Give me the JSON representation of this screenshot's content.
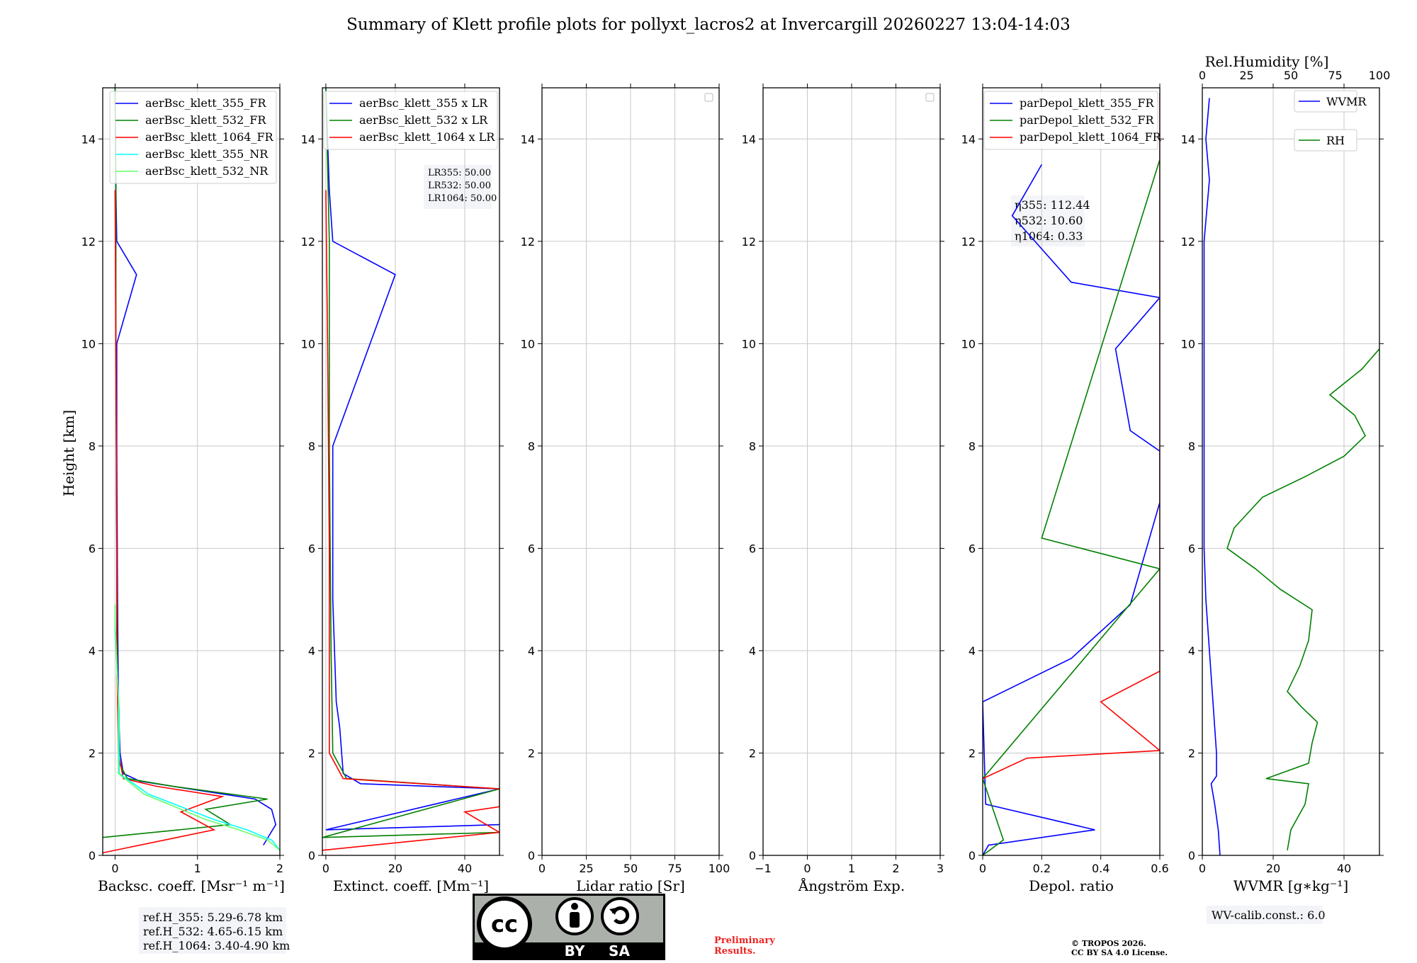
{
  "title": "Summary of Klett profile plots for pollyxt_lacros2 at Invercargill 20260227 13:04-14:03",
  "ylabel": "Height [km]",
  "chart_data": [
    {
      "id": "backscatter",
      "type": "line",
      "xlabel": "Backsc. coeff. [Msr$^{-1}$ m$^{-1}$]",
      "xlabel_display": "Backsc. coeff. [Msr⁻¹ m⁻¹]",
      "xlim": [
        -0.15,
        2.0
      ],
      "ylim": [
        0,
        15
      ],
      "xticks": [
        0,
        1,
        2
      ],
      "yticks": [
        0,
        2,
        4,
        6,
        8,
        10,
        12,
        14
      ],
      "legend": {
        "location": "top-right"
      },
      "series": [
        {
          "name": "aerBsc_klett_355_FR",
          "color": "#0000ff",
          "points": [
            [
              1.8,
              0.2
            ],
            [
              1.95,
              0.6
            ],
            [
              1.9,
              0.9
            ],
            [
              1.7,
              1.1
            ],
            [
              0.9,
              1.3
            ],
            [
              0.3,
              1.45
            ],
            [
              0.1,
              1.6
            ],
            [
              0.06,
              2.0
            ],
            [
              0.04,
              3.0
            ],
            [
              0.03,
              5.0
            ],
            [
              0.02,
              8.0
            ],
            [
              0.02,
              10.0
            ],
            [
              0.26,
              11.35
            ],
            [
              0.02,
              12.0
            ],
            [
              0.01,
              13.0
            ],
            [
              0.0,
              15.0
            ]
          ]
        },
        {
          "name": "aerBsc_klett_532_FR",
          "color": "#008000",
          "points": [
            [
              -0.15,
              0.35
            ],
            [
              1.4,
              0.6
            ],
            [
              1.1,
              0.9
            ],
            [
              1.85,
              1.1
            ],
            [
              0.7,
              1.35
            ],
            [
              0.15,
              1.5
            ],
            [
              0.05,
              1.8
            ],
            [
              0.03,
              3.0
            ],
            [
              0.02,
              6.0
            ],
            [
              0.01,
              10.0
            ],
            [
              0.01,
              13.0
            ],
            [
              0.0,
              15.0
            ]
          ]
        },
        {
          "name": "aerBsc_klett_1064_FR",
          "color": "#ff0000",
          "points": [
            [
              -0.15,
              0.05
            ],
            [
              1.2,
              0.5
            ],
            [
              0.8,
              0.85
            ],
            [
              1.3,
              1.15
            ],
            [
              0.5,
              1.35
            ],
            [
              0.1,
              1.5
            ],
            [
              0.04,
              2.0
            ],
            [
              0.02,
              4.0
            ],
            [
              0.02,
              6.0
            ],
            [
              0.01,
              10.0
            ],
            [
              0.0,
              13.0
            ]
          ]
        },
        {
          "name": "aerBsc_klett_355_NR",
          "color": "#00ffff",
          "points": [
            [
              2.0,
              0.1
            ],
            [
              1.9,
              0.3
            ],
            [
              1.6,
              0.5
            ],
            [
              1.2,
              0.7
            ],
            [
              0.4,
              1.2
            ],
            [
              0.05,
              1.6
            ],
            [
              0.05,
              2.8
            ],
            [
              0.0,
              4.4
            ],
            [
              0.0,
              4.9
            ]
          ]
        },
        {
          "name": "aerBsc_klett_532_NR",
          "color": "#66ff66",
          "points": [
            [
              2.0,
              0.1
            ],
            [
              1.85,
              0.3
            ],
            [
              1.5,
              0.5
            ],
            [
              1.1,
              0.7
            ],
            [
              0.35,
              1.2
            ],
            [
              0.04,
              1.6
            ],
            [
              0.04,
              3.0
            ],
            [
              0.0,
              4.6
            ],
            [
              0.0,
              4.9
            ]
          ]
        }
      ],
      "annotation": [
        "ref.H_355: 5.29-6.78 km",
        "ref.H_532: 4.65-6.15 km",
        "ref.H_1064: 3.40-4.90 km"
      ]
    },
    {
      "id": "extinction",
      "type": "line",
      "xlabel": "Extinct. coeff. [Mm$^{-1}$]",
      "xlabel_display": "Extinct. coeff. [Mm⁻¹]",
      "xlim": [
        -1,
        50
      ],
      "ylim": [
        0,
        15
      ],
      "xticks": [
        0,
        20,
        40
      ],
      "yticks": [
        0,
        2,
        4,
        6,
        8,
        10,
        12,
        14
      ],
      "legend": {
        "location": "top-right"
      },
      "series": [
        {
          "name": "aerBsc_klett_355 x LR",
          "color": "#0000ff",
          "points": [
            [
              50,
              0.6
            ],
            [
              0,
              0.5
            ],
            [
              50,
              1.3
            ],
            [
              10,
              1.4
            ],
            [
              5,
              1.6
            ],
            [
              4,
              2.5
            ],
            [
              3,
              3.0
            ],
            [
              2,
              5.0
            ],
            [
              2,
              8.0
            ],
            [
              20,
              11.35
            ],
            [
              2,
              12.0
            ],
            [
              1,
              13.0
            ],
            [
              0,
              15.0
            ]
          ]
        },
        {
          "name": "aerBsc_klett_532 x LR",
          "color": "#008000",
          "points": [
            [
              50,
              0.45
            ],
            [
              -1,
              0.35
            ],
            [
              50,
              1.3
            ],
            [
              6,
              1.5
            ],
            [
              2,
              2.0
            ],
            [
              1.5,
              4.0
            ],
            [
              1,
              8.0
            ],
            [
              1,
              12.0
            ],
            [
              0,
              15.0
            ]
          ]
        },
        {
          "name": "aerBsc_klett_1064 x LR",
          "color": "#ff0000",
          "points": [
            [
              -1,
              0.1
            ],
            [
              50,
              0.45
            ],
            [
              40,
              0.85
            ],
            [
              50,
              0.95
            ],
            [
              50,
              1.3
            ],
            [
              5,
              1.5
            ],
            [
              1,
              2.0
            ],
            [
              1,
              6.0
            ],
            [
              0.5,
              10.0
            ],
            [
              0,
              13.0
            ]
          ]
        }
      ],
      "annotation": [
        "LR355: 50.00",
        "LR532: 50.00",
        "LR1064: 50.00"
      ]
    },
    {
      "id": "lidar-ratio",
      "type": "line",
      "xlabel": "Lidar ratio [Sr]",
      "xlim": [
        0,
        100
      ],
      "ylim": [
        0,
        15
      ],
      "xticks": [
        0,
        25,
        50,
        75,
        100
      ],
      "yticks": [
        0,
        2,
        4,
        6,
        8,
        10,
        12,
        14
      ],
      "series": []
    },
    {
      "id": "angstrom",
      "type": "line",
      "xlabel": "Ångström Exp.",
      "xlim": [
        -1,
        3
      ],
      "ylim": [
        0,
        15
      ],
      "xticks": [
        -1,
        0,
        1,
        2,
        3
      ],
      "yticks": [
        0,
        2,
        4,
        6,
        8,
        10,
        12,
        14
      ],
      "series": []
    },
    {
      "id": "depolarization",
      "type": "line",
      "xlabel": "Depol. ratio",
      "xlim": [
        0,
        0.6
      ],
      "ylim": [
        0,
        15
      ],
      "xticks": [
        0.0,
        0.2,
        0.4,
        0.6
      ],
      "yticks": [
        0,
        2,
        4,
        6,
        8,
        10,
        12,
        14
      ],
      "legend": {
        "location": "top-right"
      },
      "series": [
        {
          "name": "parDepol_klett_355_FR",
          "color": "#0000ff",
          "points": [
            [
              0,
              0
            ],
            [
              0.02,
              0.2
            ],
            [
              0.38,
              0.5
            ],
            [
              0.01,
              1.0
            ],
            [
              0.0,
              3.0
            ],
            [
              0.3,
              3.85
            ],
            [
              0.5,
              4.9
            ],
            [
              0.6,
              6.9
            ],
            [
              0.6,
              7.9
            ],
            [
              0.5,
              8.3
            ],
            [
              0.45,
              9.9
            ],
            [
              0.6,
              10.9
            ],
            [
              0.3,
              11.2
            ],
            [
              0.1,
              12.5
            ],
            [
              0.2,
              13.5
            ]
          ]
        },
        {
          "name": "parDepol_klett_532_FR",
          "color": "#008000",
          "points": [
            [
              0,
              0
            ],
            [
              0.07,
              0.3
            ],
            [
              0.0,
              1.5
            ],
            [
              0.6,
              5.6
            ],
            [
              0.2,
              6.2
            ],
            [
              0.6,
              13.6
            ]
          ]
        },
        {
          "name": "parDepol_klett_1064_FR",
          "color": "#ff0000",
          "points": [
            [
              0,
              1.5
            ],
            [
              0.15,
              1.9
            ],
            [
              0.6,
              2.05
            ],
            [
              0.4,
              3.0
            ],
            [
              0.6,
              3.6
            ],
            [
              0.6,
              4.5
            ],
            [
              0.6,
              5.5
            ],
            [
              0.6,
              6.0
            ],
            [
              0.6,
              7.5
            ],
            [
              0.6,
              8.9
            ],
            [
              0.6,
              10.0
            ],
            [
              0.6,
              11.0
            ],
            [
              0.6,
              12.5
            ],
            [
              0.6,
              13.7
            ],
            [
              0.6,
              14.4
            ],
            [
              0.6,
              14.9
            ]
          ]
        }
      ],
      "annotation": [
        "η355: 112.44",
        "η532: 10.60",
        "η1064: 0.33"
      ]
    },
    {
      "id": "water-vapour",
      "type": "line",
      "xlabel": "WVMR [$g*kg^{-1}$]",
      "xlabel_display": "WVMR [g∗kg⁻¹]",
      "xlim": [
        0,
        50
      ],
      "ylim": [
        0,
        15
      ],
      "xticks": [
        0,
        20,
        40
      ],
      "yticks": [
        0,
        2,
        4,
        6,
        8,
        10,
        12,
        14
      ],
      "top_axis": {
        "label": "Rel.Humidity [%]",
        "lim": [
          0,
          100
        ],
        "ticks": [
          0,
          25,
          50,
          75,
          100
        ]
      },
      "legend": {
        "location": "top-right"
      },
      "series": [
        {
          "name": "WVMR",
          "color": "#0000ff",
          "axis": "bottom",
          "points": [
            [
              5,
              0
            ],
            [
              4.5,
              0.5
            ],
            [
              3.5,
              1.0
            ],
            [
              2.5,
              1.4
            ],
            [
              4,
              1.55
            ],
            [
              4,
              2.0
            ],
            [
              3,
              3.0
            ],
            [
              2,
              4.0
            ],
            [
              1,
              5.0
            ],
            [
              0.5,
              6.0
            ],
            [
              0.5,
              8.0
            ],
            [
              0.5,
              10.0
            ],
            [
              0.5,
              12.0
            ],
            [
              2,
              13.2
            ],
            [
              1,
              14.0
            ],
            [
              2,
              14.8
            ]
          ]
        },
        {
          "name": "RH",
          "color": "#008000",
          "axis": "top",
          "points": [
            [
              48,
              0.1
            ],
            [
              50,
              0.5
            ],
            [
              58,
              1.0
            ],
            [
              60,
              1.4
            ],
            [
              36,
              1.5
            ],
            [
              60,
              1.8
            ],
            [
              62,
              2.2
            ],
            [
              65,
              2.6
            ],
            [
              56,
              2.9
            ],
            [
              48,
              3.2
            ],
            [
              55,
              3.7
            ],
            [
              60,
              4.2
            ],
            [
              62,
              4.8
            ],
            [
              44,
              5.2
            ],
            [
              30,
              5.6
            ],
            [
              14,
              6.0
            ],
            [
              18,
              6.4
            ],
            [
              34,
              7.0
            ],
            [
              58,
              7.4
            ],
            [
              80,
              7.8
            ],
            [
              92,
              8.2
            ],
            [
              86,
              8.6
            ],
            [
              72,
              9.0
            ],
            [
              90,
              9.5
            ],
            [
              100,
              9.9
            ]
          ]
        }
      ],
      "annotation": [
        "WV-calib.const.: 6.0"
      ]
    }
  ],
  "footer": {
    "license_badge": {
      "cc": "cc",
      "by": "BY",
      "sa": "SA"
    },
    "preliminary": [
      "Preliminary",
      "Results."
    ],
    "copyright": [
      "© TROPOS 2026.",
      "CC BY SA 4.0 License."
    ]
  }
}
